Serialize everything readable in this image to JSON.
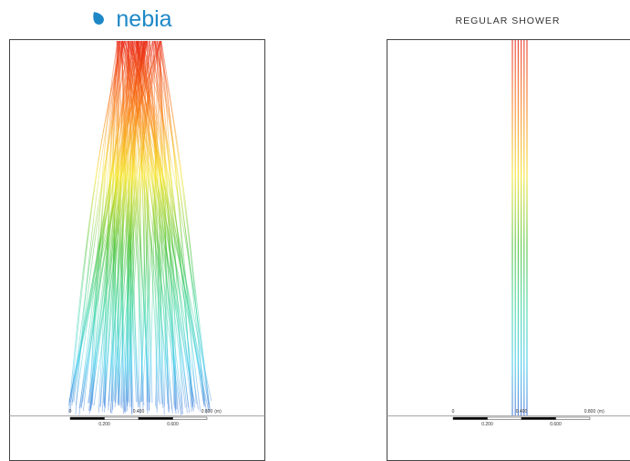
{
  "panels": [
    {
      "title": "nebia",
      "scale": {
        "top": [
          "0",
          "0.400",
          "0.800",
          "(m)"
        ],
        "bottom": [
          "0.200",
          "0.600"
        ]
      }
    },
    {
      "title": "REGULAR SHOWER",
      "scale": {
        "top": [
          "0",
          "0.400",
          "0.800",
          "(m)"
        ],
        "bottom": [
          "0.200",
          "0.600"
        ]
      }
    }
  ]
}
